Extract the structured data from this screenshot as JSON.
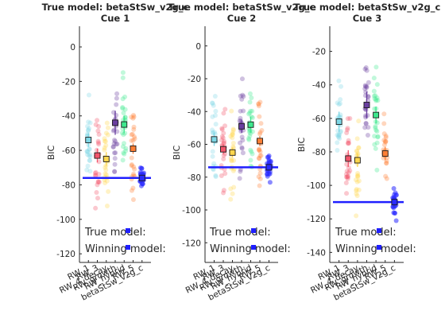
{
  "figure": {
    "background": "#ffffff",
    "legend_text": {
      "true_label": "True model:",
      "winning_label": "Winning model:"
    },
    "legend_marker_color": "#1f1fff"
  },
  "chart_data": [
    {
      "type": "scatter",
      "title": "True model: betaStSw_v2g_c",
      "subtitle": "Cue 1",
      "xlabel": "",
      "ylabel": "BIC",
      "ylim": [
        -125,
        12
      ],
      "yticks": [
        0,
        -20,
        -40,
        -60,
        -80,
        -100,
        -120
      ],
      "categories": [
        "RW_1",
        "RW_3",
        "RW_4_decay",
        "RW_growth",
        "RW_hybrid",
        "RW_5",
        "betaStSw_v2g_c"
      ],
      "means": [
        -54,
        -63,
        -65,
        -44,
        -45,
        -59,
        -76
      ],
      "sem": [
        4,
        4,
        4,
        7,
        5,
        3,
        2
      ],
      "true_model_bic": -76
    },
    {
      "type": "scatter",
      "title": "True model: betaStSw_v2g_c",
      "subtitle": "Cue 2",
      "xlabel": "",
      "ylabel": "BIC",
      "ylim": [
        -132,
        12
      ],
      "yticks": [
        0,
        -20,
        -40,
        -60,
        -80,
        -100,
        -120
      ],
      "categories": [
        "RW_1",
        "RW_3",
        "RW_4_decay",
        "RW_growth",
        "RW_hybrid",
        "RW_5",
        "betaStSw_v2g_c"
      ],
      "means": [
        -57,
        -63,
        -65,
        -49,
        -48,
        -58,
        -74
      ],
      "sem": [
        4,
        3,
        3,
        4,
        5,
        3,
        2
      ],
      "true_model_bic": -74
    },
    {
      "type": "scatter",
      "title": "True model: betaStSw_v2g_c",
      "subtitle": "Cue 3",
      "xlabel": "",
      "ylabel": "BIC",
      "ylim": [
        -146,
        -5
      ],
      "yticks": [
        -20,
        -40,
        -60,
        -80,
        -100,
        -120,
        -140
      ],
      "categories": [
        "RW_1",
        "RW_3",
        "RW_4_decay",
        "RW_growth",
        "RW_hybrid",
        "RW_5",
        "betaStSw_v2g_c"
      ],
      "means": [
        -62,
        -84,
        -85,
        -52,
        -58,
        -81,
        -110
      ],
      "sem": [
        6,
        5,
        4,
        8,
        5,
        4,
        2
      ],
      "true_model_bic": -110
    }
  ],
  "colors": {
    "models": [
      "#7ed7e6",
      "#f2556b",
      "#ffd64d",
      "#6a3fa0",
      "#3ee88e",
      "#ff7f35",
      "#2a2aff"
    ],
    "line": "#1f1fff",
    "axis": "#262626"
  }
}
